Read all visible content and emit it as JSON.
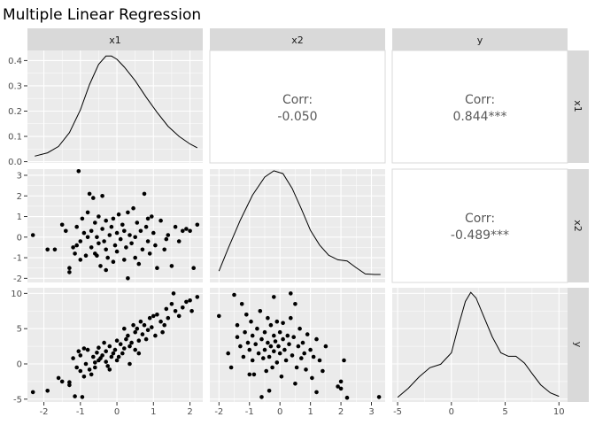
{
  "chart_data": {
    "type": "scatter",
    "title": "Multiple Linear Regression",
    "variables": [
      "x1",
      "x2",
      "y"
    ],
    "colors": {
      "panel_bg": "#ebebeb",
      "grid_major": "#ffffff",
      "strip_bg": "#d9d9d9",
      "points": "#000000",
      "corr_text": "#595959"
    },
    "density_x1": {
      "axis": "x1",
      "xlim": [
        -2.45,
        2.35
      ],
      "ylim": [
        -0.005,
        0.44
      ],
      "yticks": [
        "0.0",
        "0.1",
        "0.2",
        "0.3",
        "0.4"
      ],
      "ytick_values": [
        0.0,
        0.1,
        0.2,
        0.3,
        0.4
      ],
      "points": [
        [
          -2.25,
          0.022
        ],
        [
          -1.9,
          0.035
        ],
        [
          -1.6,
          0.06
        ],
        [
          -1.3,
          0.115
        ],
        [
          -1.0,
          0.205
        ],
        [
          -0.75,
          0.305
        ],
        [
          -0.5,
          0.385
        ],
        [
          -0.3,
          0.418
        ],
        [
          -0.15,
          0.418
        ],
        [
          0.0,
          0.405
        ],
        [
          0.2,
          0.375
        ],
        [
          0.5,
          0.32
        ],
        [
          0.8,
          0.255
        ],
        [
          1.1,
          0.195
        ],
        [
          1.4,
          0.14
        ],
        [
          1.7,
          0.1
        ],
        [
          2.0,
          0.07
        ],
        [
          2.2,
          0.055
        ]
      ]
    },
    "density_x2": {
      "axis": "x2",
      "xlim": [
        -2.3,
        3.45
      ],
      "ylim": [
        0,
        1
      ],
      "points": [
        [
          -2.0,
          0.1
        ],
        [
          -1.7,
          0.3
        ],
        [
          -1.3,
          0.55
        ],
        [
          -0.9,
          0.77
        ],
        [
          -0.5,
          0.93
        ],
        [
          -0.2,
          0.985
        ],
        [
          0.1,
          0.96
        ],
        [
          0.4,
          0.83
        ],
        [
          0.7,
          0.65
        ],
        [
          1.0,
          0.46
        ],
        [
          1.3,
          0.33
        ],
        [
          1.6,
          0.24
        ],
        [
          1.9,
          0.2
        ],
        [
          2.2,
          0.19
        ],
        [
          2.5,
          0.13
        ],
        [
          2.8,
          0.075
        ],
        [
          3.1,
          0.07
        ],
        [
          3.3,
          0.07
        ]
      ]
    },
    "density_y": {
      "axis": "y",
      "xlim": [
        -5.5,
        10.8
      ],
      "xticks": [
        "-5",
        "0",
        "5",
        "10"
      ],
      "xtick_values": [
        -5,
        0,
        5,
        10
      ],
      "ylim": [
        0,
        1
      ],
      "points": [
        [
          -5.0,
          0.04
        ],
        [
          -4.0,
          0.12
        ],
        [
          -3.0,
          0.22
        ],
        [
          -2.0,
          0.3
        ],
        [
          -1.0,
          0.33
        ],
        [
          0.0,
          0.43
        ],
        [
          0.7,
          0.68
        ],
        [
          1.3,
          0.88
        ],
        [
          1.8,
          0.96
        ],
        [
          2.3,
          0.91
        ],
        [
          3.0,
          0.75
        ],
        [
          3.8,
          0.57
        ],
        [
          4.6,
          0.43
        ],
        [
          5.3,
          0.4
        ],
        [
          6.0,
          0.4
        ],
        [
          6.8,
          0.34
        ],
        [
          7.5,
          0.25
        ],
        [
          8.3,
          0.15
        ],
        [
          9.2,
          0.08
        ],
        [
          10.0,
          0.05
        ]
      ]
    },
    "axis_x1": {
      "lim": [
        -2.45,
        2.35
      ],
      "ticks": [
        "-2",
        "-1",
        "0",
        "1",
        "2"
      ],
      "tick_values": [
        -2,
        -1,
        0,
        1,
        2
      ]
    },
    "axis_x2": {
      "lim": [
        -2.3,
        3.45
      ],
      "ticks": [
        "-2",
        "-1",
        "0",
        "1",
        "2",
        "3"
      ],
      "tick_values": [
        -2,
        -1,
        0,
        1,
        2,
        3
      ]
    },
    "axis_x2_vertical": {
      "lim": [
        -2.2,
        3.3
      ],
      "ticks": [
        "-2",
        "-1",
        "0",
        "1",
        "2",
        "3"
      ],
      "tick_values": [
        -2,
        -1,
        0,
        1,
        2,
        3
      ]
    },
    "axis_y_vertical": {
      "lim": [
        -5.4,
        10.8
      ],
      "ticks": [
        "-5",
        "0",
        "5",
        "10"
      ],
      "tick_values": [
        -5,
        0,
        5,
        10
      ]
    },
    "scatter_x1_x2": [
      [
        -2.3,
        0.1
      ],
      [
        -1.9,
        -0.6
      ],
      [
        -1.7,
        -0.6
      ],
      [
        -1.5,
        0.6
      ],
      [
        -1.4,
        0.3
      ],
      [
        -1.3,
        -1.5
      ],
      [
        -1.3,
        -1.7
      ],
      [
        -1.2,
        -0.5
      ],
      [
        -1.15,
        -0.8
      ],
      [
        -1.1,
        -0.4
      ],
      [
        -1.1,
        0.5
      ],
      [
        -1.05,
        3.2
      ],
      [
        -1.0,
        -0.2
      ],
      [
        -1.0,
        -1.1
      ],
      [
        -0.95,
        0.9
      ],
      [
        -0.9,
        0.2
      ],
      [
        -0.85,
        -0.9
      ],
      [
        -0.8,
        1.2
      ],
      [
        -0.75,
        2.1
      ],
      [
        -0.7,
        0.3
      ],
      [
        -0.7,
        -0.5
      ],
      [
        -0.65,
        1.9
      ],
      [
        -0.6,
        -0.8
      ],
      [
        -0.6,
        0.7
      ],
      [
        -0.55,
        0.0
      ],
      [
        -0.5,
        1.0
      ],
      [
        -0.5,
        -0.3
      ],
      [
        -0.45,
        -1.4
      ],
      [
        -0.4,
        0.4
      ],
      [
        -0.4,
        2.0
      ],
      [
        -0.35,
        -0.2
      ],
      [
        -0.3,
        0.8
      ],
      [
        -0.3,
        -0.6
      ],
      [
        -0.25,
        -1.0
      ],
      [
        -0.2,
        0.1
      ],
      [
        -0.15,
        0.5
      ],
      [
        -0.1,
        -1.2
      ],
      [
        -0.1,
        0.9
      ],
      [
        -0.05,
        -0.4
      ],
      [
        0.0,
        0.2
      ],
      [
        0.0,
        -0.7
      ],
      [
        0.05,
        1.1
      ],
      [
        0.1,
        -0.1
      ],
      [
        0.15,
        0.6
      ],
      [
        0.2,
        -1.1
      ],
      [
        0.2,
        0.3
      ],
      [
        0.25,
        -0.5
      ],
      [
        0.3,
        1.2
      ],
      [
        0.35,
        0.1
      ],
      [
        0.4,
        -0.3
      ],
      [
        0.45,
        1.4
      ],
      [
        0.5,
        0.0
      ],
      [
        0.5,
        -1.0
      ],
      [
        0.55,
        0.7
      ],
      [
        0.6,
        -1.3
      ],
      [
        0.65,
        0.3
      ],
      [
        0.7,
        -0.6
      ],
      [
        0.75,
        2.1
      ],
      [
        0.8,
        0.5
      ],
      [
        0.85,
        -0.2
      ],
      [
        0.9,
        -0.8
      ],
      [
        0.95,
        1.0
      ],
      [
        1.0,
        0.2
      ],
      [
        1.05,
        -0.4
      ],
      [
        1.1,
        -1.5
      ],
      [
        1.2,
        0.8
      ],
      [
        1.3,
        -0.6
      ],
      [
        1.4,
        0.1
      ],
      [
        1.5,
        -1.4
      ],
      [
        1.6,
        0.5
      ],
      [
        1.7,
        -0.2
      ],
      [
        1.8,
        0.3
      ],
      [
        1.9,
        0.4
      ],
      [
        2.0,
        0.3
      ],
      [
        2.1,
        -1.5
      ],
      [
        2.2,
        0.6
      ],
      [
        -0.8,
        0.0
      ],
      [
        -0.3,
        -1.6
      ],
      [
        0.3,
        -2.0
      ],
      [
        1.35,
        -0.1
      ],
      [
        -0.55,
        -0.9
      ],
      [
        0.85,
        0.9
      ]
    ],
    "scatter_x1_y": [
      [
        -2.3,
        -4.0
      ],
      [
        -1.9,
        -3.8
      ],
      [
        -1.6,
        -2.0
      ],
      [
        -1.5,
        -2.5
      ],
      [
        -1.3,
        -2.6
      ],
      [
        -1.2,
        0.8
      ],
      [
        -1.1,
        -0.5
      ],
      [
        -1.05,
        1.8
      ],
      [
        -1.0,
        1.2
      ],
      [
        -1.0,
        -1.0
      ],
      [
        -0.95,
        -4.7
      ],
      [
        -0.9,
        -1.8
      ],
      [
        -0.85,
        0.0
      ],
      [
        -0.8,
        2.0
      ],
      [
        -0.75,
        -0.8
      ],
      [
        -0.7,
        -1.5
      ],
      [
        -0.65,
        1.0
      ],
      [
        -0.6,
        0.2
      ],
      [
        -0.55,
        1.6
      ],
      [
        -0.5,
        0.5
      ],
      [
        -0.5,
        2.3
      ],
      [
        -0.45,
        0.8
      ],
      [
        -0.4,
        1.2
      ],
      [
        -0.35,
        3.0
      ],
      [
        -0.3,
        0.3
      ],
      [
        -0.3,
        1.8
      ],
      [
        -0.25,
        -0.3
      ],
      [
        -0.2,
        2.5
      ],
      [
        -0.15,
        1.0
      ],
      [
        -0.1,
        1.5
      ],
      [
        -0.05,
        2.0
      ],
      [
        0.0,
        3.3
      ],
      [
        0.0,
        0.5
      ],
      [
        0.05,
        1.0
      ],
      [
        0.1,
        2.8
      ],
      [
        0.15,
        1.5
      ],
      [
        0.2,
        2.2
      ],
      [
        0.25,
        3.5
      ],
      [
        0.3,
        4.0
      ],
      [
        0.35,
        2.5
      ],
      [
        0.4,
        3.0
      ],
      [
        0.45,
        5.5
      ],
      [
        0.5,
        4.5
      ],
      [
        0.5,
        2.0
      ],
      [
        0.55,
        5.0
      ],
      [
        0.6,
        3.3
      ],
      [
        0.65,
        6.0
      ],
      [
        0.7,
        4.2
      ],
      [
        0.75,
        5.5
      ],
      [
        0.8,
        3.5
      ],
      [
        0.85,
        4.8
      ],
      [
        0.9,
        6.5
      ],
      [
        0.95,
        5.2
      ],
      [
        1.0,
        6.8
      ],
      [
        1.05,
        4.0
      ],
      [
        1.1,
        7.0
      ],
      [
        1.2,
        6.0
      ],
      [
        1.3,
        5.5
      ],
      [
        1.35,
        7.8
      ],
      [
        1.4,
        6.5
      ],
      [
        1.5,
        8.5
      ],
      [
        1.55,
        10.0
      ],
      [
        1.6,
        7.5
      ],
      [
        1.7,
        6.8
      ],
      [
        1.8,
        8.0
      ],
      [
        1.9,
        8.8
      ],
      [
        2.0,
        9.0
      ],
      [
        2.05,
        7.5
      ],
      [
        2.2,
        9.5
      ],
      [
        -1.15,
        -4.6
      ],
      [
        -0.9,
        2.2
      ],
      [
        0.2,
        5.0
      ],
      [
        -0.6,
        -0.5
      ],
      [
        0.6,
        1.5
      ],
      [
        -0.2,
        -0.8
      ],
      [
        1.25,
        4.5
      ],
      [
        0.35,
        0.0
      ],
      [
        -1.3,
        -3.0
      ]
    ],
    "scatter_x2_y": [
      [
        -2.0,
        6.8
      ],
      [
        -1.7,
        1.5
      ],
      [
        -1.6,
        -0.5
      ],
      [
        -1.5,
        9.8
      ],
      [
        -1.4,
        5.5
      ],
      [
        -1.3,
        2.5
      ],
      [
        -1.25,
        8.5
      ],
      [
        -1.2,
        1.0
      ],
      [
        -1.15,
        4.5
      ],
      [
        -1.1,
        7.0
      ],
      [
        -1.05,
        3.0
      ],
      [
        -1.0,
        2.0
      ],
      [
        -0.95,
        6.0
      ],
      [
        -0.9,
        0.5
      ],
      [
        -0.9,
        4.0
      ],
      [
        -0.85,
        -1.5
      ],
      [
        -0.8,
        2.8
      ],
      [
        -0.75,
        5.0
      ],
      [
        -0.7,
        1.5
      ],
      [
        -0.65,
        7.5
      ],
      [
        -0.6,
        3.5
      ],
      [
        -0.55,
        0.8
      ],
      [
        -0.5,
        4.5
      ],
      [
        -0.5,
        2.0
      ],
      [
        -0.45,
        -1.0
      ],
      [
        -0.4,
        6.5
      ],
      [
        -0.4,
        3.0
      ],
      [
        -0.35,
        1.0
      ],
      [
        -0.3,
        5.5
      ],
      [
        -0.3,
        2.5
      ],
      [
        -0.25,
        -0.5
      ],
      [
        -0.2,
        4.0
      ],
      [
        -0.2,
        1.8
      ],
      [
        -0.15,
        3.2
      ],
      [
        -0.1,
        6.0
      ],
      [
        -0.1,
        0.2
      ],
      [
        -0.05,
        2.5
      ],
      [
        0.0,
        4.5
      ],
      [
        0.0,
        1.5
      ],
      [
        0.05,
        -1.8
      ],
      [
        0.1,
        3.5
      ],
      [
        0.1,
        5.8
      ],
      [
        0.15,
        2.0
      ],
      [
        0.2,
        0.5
      ],
      [
        0.25,
        4.0
      ],
      [
        0.3,
        2.8
      ],
      [
        0.35,
        6.5
      ],
      [
        0.4,
        1.2
      ],
      [
        0.45,
        3.8
      ],
      [
        0.5,
        8.5
      ],
      [
        0.55,
        -0.5
      ],
      [
        0.6,
        2.5
      ],
      [
        0.65,
        5.0
      ],
      [
        0.7,
        0.8
      ],
      [
        0.75,
        3.0
      ],
      [
        0.8,
        1.5
      ],
      [
        0.85,
        -0.8
      ],
      [
        0.9,
        4.2
      ],
      [
        1.0,
        2.0
      ],
      [
        1.05,
        -2.0
      ],
      [
        1.1,
        1.0
      ],
      [
        1.2,
        3.5
      ],
      [
        1.3,
        0.5
      ],
      [
        1.4,
        -1.0
      ],
      [
        1.5,
        2.5
      ],
      [
        1.9,
        -3.2
      ],
      [
        2.0,
        -2.5
      ],
      [
        2.0,
        -3.5
      ],
      [
        2.1,
        0.5
      ],
      [
        2.2,
        -4.8
      ],
      [
        3.25,
        -4.7
      ],
      [
        -1.4,
        3.8
      ],
      [
        -0.6,
        -4.7
      ],
      [
        0.5,
        -2.8
      ],
      [
        -0.2,
        9.5
      ],
      [
        0.35,
        10.0
      ],
      [
        -1.0,
        -1.5
      ],
      [
        -0.35,
        -3.8
      ],
      [
        1.2,
        -4.0
      ]
    ],
    "correlations": {
      "label": "Corr:",
      "x1_x2": "-0.050",
      "x1_y": "0.844***",
      "x2_y": "-0.489***"
    }
  }
}
